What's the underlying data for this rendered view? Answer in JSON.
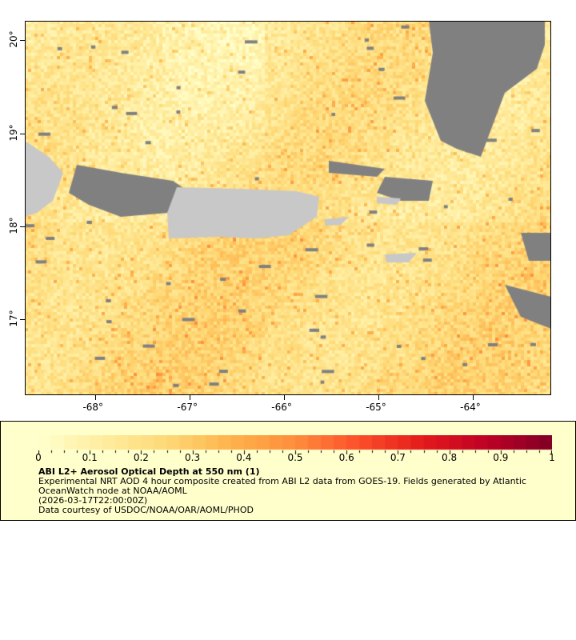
{
  "map": {
    "lon_range": [
      -68.75,
      -63.17
    ],
    "lat_range": [
      16.18,
      20.21
    ],
    "lon_ticks": [
      {
        "v": -68,
        "label": "-68°"
      },
      {
        "v": -67,
        "label": "-67°"
      },
      {
        "v": -66,
        "label": "-66°"
      },
      {
        "v": -65,
        "label": "-65°"
      },
      {
        "v": -64,
        "label": "-64°"
      }
    ],
    "lat_ticks": [
      {
        "v": 20,
        "label": "20°"
      },
      {
        "v": 19,
        "label": "19°"
      },
      {
        "v": 18,
        "label": "18°"
      },
      {
        "v": 17,
        "label": "17°"
      }
    ],
    "land_color": "#c8c8c8",
    "nodata_color": "#808080"
  },
  "legend": {
    "ticks": [
      "0",
      "0.1",
      "0.2",
      "0.3",
      "0.4",
      "0.5",
      "0.6",
      "0.7",
      "0.8",
      "0.9",
      "1"
    ],
    "range": [
      0,
      1
    ],
    "colors": [
      "#ffffcc",
      "#ffeda0",
      "#fed976",
      "#feb24c",
      "#fd8d3c",
      "#fc4e2a",
      "#e31a1c",
      "#bd0026",
      "#800026"
    ],
    "title": "ABI L2+ Aerosol Optical Depth at 550 nm (1)",
    "desc1": "Experimental NRT AOD 4 hour composite created from ABI L2 data from GOES-19. Fields generated by Atlantic",
    "desc2": "OceanWatch node at NOAA/AOML",
    "time": "(2026-03-17T22:00:00Z)",
    "credit": "Data courtesy of USDOC/NOAA/OAR/AOML/PHOD"
  }
}
